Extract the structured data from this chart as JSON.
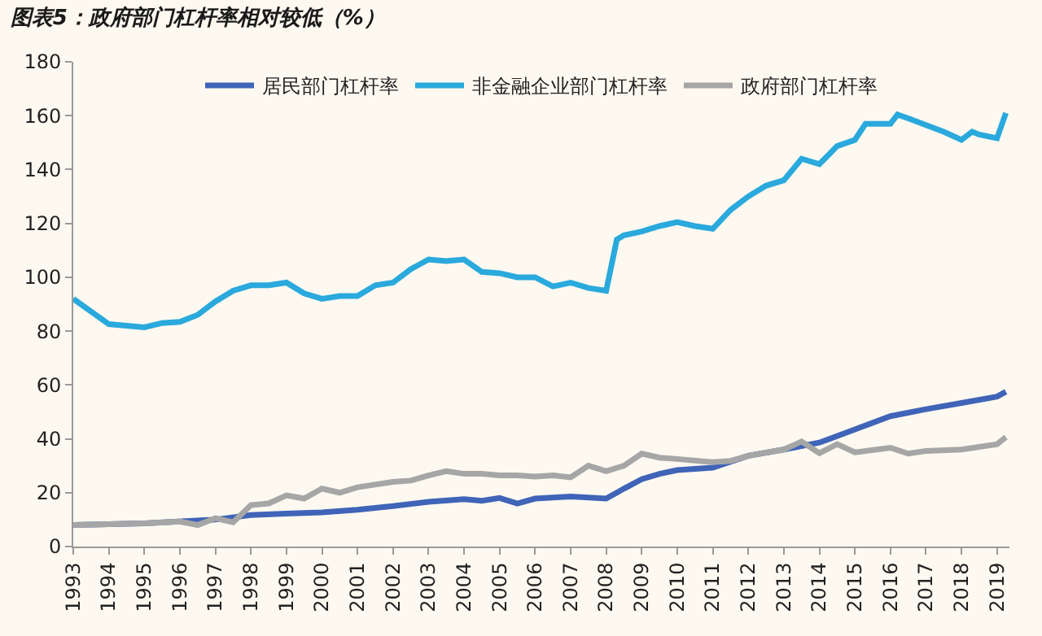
{
  "chart_data": {
    "type": "line",
    "title": "图表5：政府部门杠杆率相对较低（%）",
    "x": [
      1993,
      1994,
      1994.5,
      1995,
      1995.5,
      1996,
      1996.5,
      1997,
      1997.5,
      1998,
      1998.5,
      1999,
      1999.5,
      2000,
      2000.5,
      2001,
      2001.5,
      2002,
      2002.5,
      2003,
      2003.5,
      2004,
      2004.5,
      2005,
      2005.5,
      2006,
      2006.5,
      2007,
      2007.5,
      2008,
      2008.3,
      2008.5,
      2009,
      2009.5,
      2010,
      2010.5,
      2011,
      2011.5,
      2012,
      2012.5,
      2013,
      2013.5,
      2014,
      2014.5,
      2015,
      2015.3,
      2016,
      2016.2,
      2016.5,
      2017,
      2017.5,
      2018,
      2018.3,
      2018.5,
      2019,
      2019.25
    ],
    "series": [
      {
        "name": "居民部门杠杆率",
        "color": "#3f64b8",
        "x": [
          1993,
          1995,
          1997,
          1998,
          1999,
          2000,
          2001,
          2002,
          2003,
          2004,
          2004.5,
          2005,
          2005.5,
          2006,
          2007,
          2008,
          2008.5,
          2009,
          2009.5,
          2010,
          2011,
          2012,
          2013,
          2014,
          2015,
          2016,
          2017,
          2018,
          2019,
          2019.25
        ],
        "values": [
          8,
          8.6,
          10,
          11.7,
          12.2,
          12.7,
          13.7,
          15,
          16.6,
          17.6,
          17,
          18,
          16,
          17.8,
          18.6,
          17.8,
          21.5,
          25,
          27,
          28.4,
          29.3,
          33.7,
          36,
          38.6,
          43.5,
          48.4,
          51,
          53.3,
          55.7,
          57.5
        ]
      },
      {
        "name": "非金融企业部门杠杆率",
        "color": "#2aa9dd",
        "values": [
          92,
          82.6,
          82,
          81.4,
          83,
          83.4,
          86,
          91,
          95,
          97,
          97,
          98,
          94,
          92,
          93,
          93,
          97,
          98,
          103,
          106.6,
          106,
          106.6,
          102,
          101.5,
          100,
          100,
          96.6,
          98,
          96,
          95,
          114,
          115.6,
          117,
          119,
          120.5,
          119,
          118,
          125,
          130,
          134,
          136,
          144,
          142,
          148.7,
          151,
          157,
          157,
          160.4,
          159,
          156.5,
          154,
          151,
          154,
          153,
          151.6,
          161
        ]
      },
      {
        "name": "政府部门杠杆率",
        "color": "#a6a6a6",
        "x": [
          1993,
          1995,
          1996,
          1996.5,
          1997,
          1997.5,
          1998,
          1998.5,
          1999,
          1999.5,
          2000,
          2000.5,
          2001,
          2002,
          2002.5,
          2003,
          2003.5,
          2004,
          2004.5,
          2005,
          2005.5,
          2006,
          2006.5,
          2007,
          2007.5,
          2008,
          2008.5,
          2009,
          2009.5,
          2010,
          2011,
          2011.5,
          2012,
          2013,
          2013.5,
          2014,
          2014.5,
          2015,
          2016,
          2016.5,
          2017,
          2018,
          2019,
          2019.25
        ],
        "values": [
          8,
          8.6,
          9.3,
          8,
          10.5,
          9,
          15.4,
          16,
          19,
          17.8,
          21.5,
          20,
          22,
          24,
          24.5,
          26.4,
          28,
          27,
          27,
          26.4,
          26.4,
          26,
          26.4,
          25.7,
          30,
          28,
          30,
          34.5,
          33,
          32.5,
          31.3,
          31.8,
          33.7,
          36,
          39,
          34.7,
          38,
          35,
          36.7,
          34.5,
          35.5,
          36,
          38,
          40.6
        ]
      }
    ],
    "xlim": [
      1993,
      2019.35
    ],
    "xticks": [
      1993,
      1994,
      1995,
      1996,
      1997,
      1998,
      1999,
      2000,
      2001,
      2002,
      2003,
      2004,
      2005,
      2006,
      2007,
      2008,
      2009,
      2010,
      2011,
      2012,
      2013,
      2014,
      2015,
      2016,
      2017,
      2018,
      2019
    ],
    "ylim": [
      0,
      180
    ],
    "yticks": [
      0,
      20,
      40,
      60,
      80,
      100,
      120,
      140,
      160,
      180
    ],
    "grid": false,
    "legend": "top",
    "marker": "none",
    "line_style": "solid"
  }
}
